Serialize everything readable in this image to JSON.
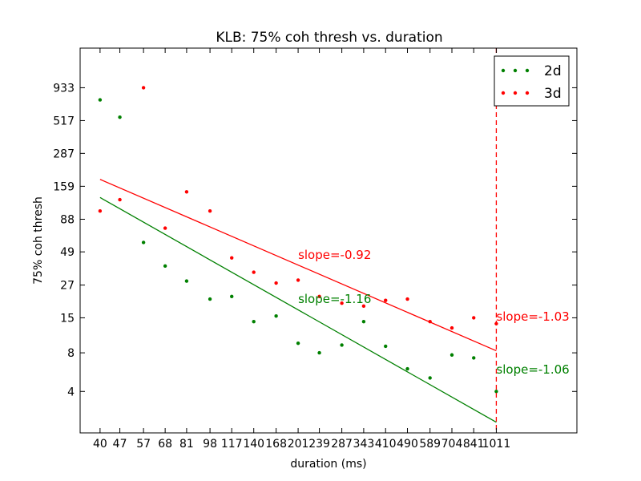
{
  "chart_data": {
    "type": "scatter",
    "title": "KLB: 75% coh thresh vs. duration",
    "xlabel": "duration (ms)",
    "ylabel": "75% coh thresh",
    "x_scale": "log",
    "y_scale": "log",
    "xlim": [
      34,
      1950
    ],
    "ylim": [
      1.9,
      1900
    ],
    "x_ticks": [
      "40",
      "47",
      "57",
      "68",
      "81",
      "98",
      "117",
      "140",
      "168",
      "201",
      "239",
      "287",
      "343",
      "410",
      "490",
      "589",
      "704",
      "841",
      "1011"
    ],
    "y_ticks": [
      "4",
      "8",
      "15",
      "27",
      "49",
      "88",
      "159",
      "287",
      "517",
      "933"
    ],
    "grid": false,
    "legend_position": "top-right",
    "series": [
      {
        "name": "2d",
        "color": "#008000",
        "x": [
          40,
          47,
          57,
          68,
          81,
          98,
          117,
          140,
          168,
          201,
          239,
          287,
          343,
          410,
          490,
          589,
          704,
          841,
          1011
        ],
        "y": [
          750,
          550,
          58,
          38,
          29,
          21,
          22,
          14,
          15.5,
          9.5,
          8,
          9.2,
          14,
          9,
          6,
          5.1,
          7.7,
          7.3,
          4
        ],
        "fit": {
          "x": [
            40,
            1011
          ],
          "y": [
            130,
            2.3
          ]
        },
        "slope_label": "slope=-1.16",
        "final_slope_label": "slope=-1.06"
      },
      {
        "name": "3d",
        "color": "#ff0000",
        "x": [
          40,
          47,
          57,
          68,
          81,
          98,
          117,
          140,
          168,
          201,
          239,
          287,
          343,
          410,
          490,
          589,
          704,
          841,
          1011
        ],
        "y": [
          102,
          125,
          933,
          75,
          144,
          102,
          44,
          34,
          28,
          29.5,
          22,
          19.5,
          18.5,
          20.5,
          21,
          14,
          12.5,
          15,
          13.5
        ],
        "fit": {
          "x": [
            40,
            1011
          ],
          "y": [
            180,
            8.3
          ]
        },
        "slope_label": "slope=-0.92",
        "final_slope_label": "slope=-1.03"
      }
    ],
    "vline": {
      "x": 1011,
      "color": "#ff0000",
      "style": "dashed"
    }
  }
}
